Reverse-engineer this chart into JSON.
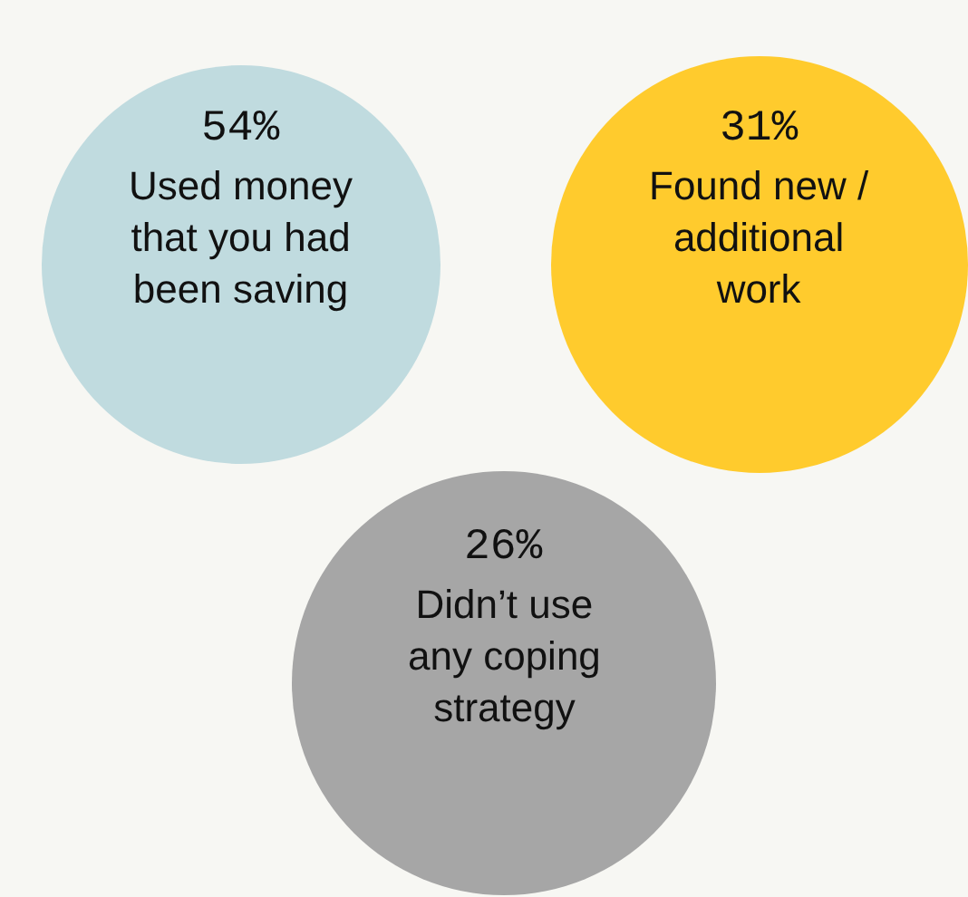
{
  "chart_data": {
    "type": "other",
    "categories": [
      "Used money that you had been saving",
      "Found new / additional work",
      "Didn’t use any coping strategy"
    ],
    "values": [
      54,
      31,
      26
    ],
    "value_labels": [
      "54%",
      "31%",
      "26%"
    ],
    "colors": [
      "#c0dbdf",
      "#ffcb2d",
      "#a6a6a6"
    ]
  }
}
